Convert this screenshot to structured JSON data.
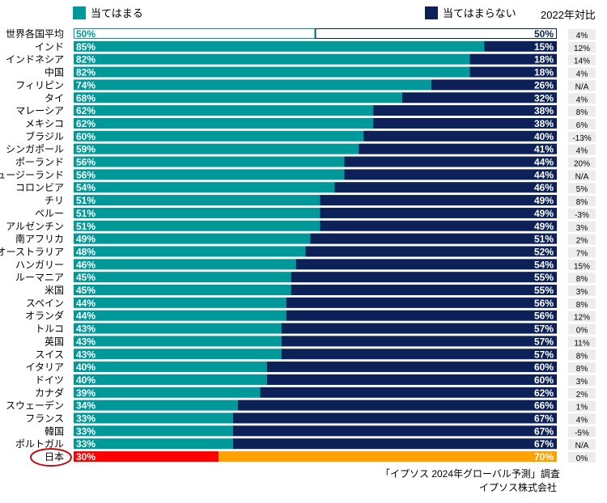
{
  "legend": {
    "agree_label": "当てはまる",
    "disagree_label": "当てはまらない",
    "change_header": "2022年対比"
  },
  "colors": {
    "agree": "#00999a",
    "disagree": "#0b2157",
    "japan_agree": "#ff0000",
    "japan_disagree": "#ffa200",
    "change_bg": "#ececec",
    "highlight_circle": "#c00000"
  },
  "source": {
    "line1": "「イプソス 2024年グローバル予測」調査",
    "line2": "イプソス株式会社"
  },
  "chart_data": {
    "type": "bar",
    "orientation": "horizontal",
    "stacked": true,
    "percent_axis": [
      0,
      100
    ],
    "series_names": [
      "当てはまる",
      "当てはまらない"
    ],
    "rows": [
      {
        "country": "世界各国平均",
        "agree": 50,
        "disagree": 50,
        "change": "4%",
        "style": "average"
      },
      {
        "country": "インド",
        "agree": 85,
        "disagree": 15,
        "change": "12%"
      },
      {
        "country": "インドネシア",
        "agree": 82,
        "disagree": 18,
        "change": "14%"
      },
      {
        "country": "中国",
        "agree": 82,
        "disagree": 18,
        "change": "4%"
      },
      {
        "country": "フィリピン",
        "agree": 74,
        "disagree": 26,
        "change": "N/A"
      },
      {
        "country": "タイ",
        "agree": 68,
        "disagree": 32,
        "change": "4%"
      },
      {
        "country": "マレーシア",
        "agree": 62,
        "disagree": 38,
        "change": "8%"
      },
      {
        "country": "メキシコ",
        "agree": 62,
        "disagree": 38,
        "change": "6%"
      },
      {
        "country": "ブラジル",
        "agree": 60,
        "disagree": 40,
        "change": "-13%"
      },
      {
        "country": "シンガポール",
        "agree": 59,
        "disagree": 41,
        "change": "4%"
      },
      {
        "country": "ポーランド",
        "agree": 56,
        "disagree": 44,
        "change": "20%"
      },
      {
        "country": "ニュージーランド",
        "agree": 56,
        "disagree": 44,
        "change": "N/A"
      },
      {
        "country": "コロンビア",
        "agree": 54,
        "disagree": 46,
        "change": "5%"
      },
      {
        "country": "チリ",
        "agree": 51,
        "disagree": 49,
        "change": "8%"
      },
      {
        "country": "ペルー",
        "agree": 51,
        "disagree": 49,
        "change": "-3%"
      },
      {
        "country": "アルゼンチン",
        "agree": 51,
        "disagree": 49,
        "change": "3%"
      },
      {
        "country": "南アフリカ",
        "agree": 49,
        "disagree": 51,
        "change": "2%"
      },
      {
        "country": "オーストラリア",
        "agree": 48,
        "disagree": 52,
        "change": "7%"
      },
      {
        "country": "ハンガリー",
        "agree": 46,
        "disagree": 54,
        "change": "15%"
      },
      {
        "country": "ルーマニア",
        "agree": 45,
        "disagree": 55,
        "change": "8%"
      },
      {
        "country": "米国",
        "agree": 45,
        "disagree": 55,
        "change": "3%"
      },
      {
        "country": "スペイン",
        "agree": 44,
        "disagree": 56,
        "change": "8%"
      },
      {
        "country": "オランダ",
        "agree": 44,
        "disagree": 56,
        "change": "12%"
      },
      {
        "country": "トルコ",
        "agree": 43,
        "disagree": 57,
        "change": "0%"
      },
      {
        "country": "英国",
        "agree": 43,
        "disagree": 57,
        "change": "11%"
      },
      {
        "country": "スイス",
        "agree": 43,
        "disagree": 57,
        "change": "8%"
      },
      {
        "country": "イタリア",
        "agree": 40,
        "disagree": 60,
        "change": "8%"
      },
      {
        "country": "ドイツ",
        "agree": 40,
        "disagree": 60,
        "change": "3%"
      },
      {
        "country": "カナダ",
        "agree": 39,
        "disagree": 62,
        "change": "2%"
      },
      {
        "country": "スウェーデン",
        "agree": 34,
        "disagree": 66,
        "change": "1%"
      },
      {
        "country": "フランス",
        "agree": 33,
        "disagree": 67,
        "change": "4%"
      },
      {
        "country": "韓国",
        "agree": 33,
        "disagree": 67,
        "change": "-5%"
      },
      {
        "country": "ポルトガル",
        "agree": 33,
        "disagree": 67,
        "change": "N/A"
      },
      {
        "country": "日本",
        "agree": 30,
        "disagree": 70,
        "change": "0%",
        "style": "highlight"
      }
    ]
  }
}
